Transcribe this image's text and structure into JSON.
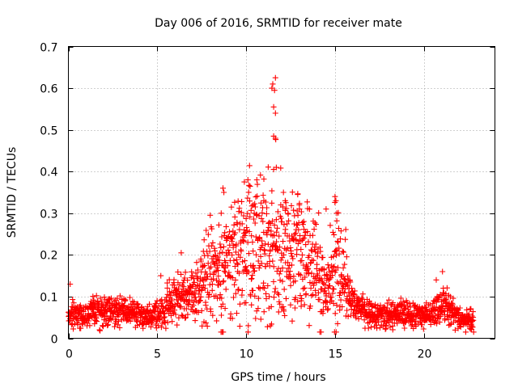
{
  "chart_data": {
    "type": "scatter",
    "title": "Day 006 of 2016, SRMTID for receiver mate",
    "xlabel": "GPS time / hours",
    "ylabel": "SRMTID / TECUs",
    "xlim": [
      0,
      24
    ],
    "ylim": [
      0,
      0.7
    ],
    "x_ticks": [
      0,
      5,
      10,
      15,
      20
    ],
    "x_tick_labels": [
      "0",
      "5",
      "10",
      "15",
      "20"
    ],
    "y_ticks": [
      0,
      0.1,
      0.2,
      0.3,
      0.4,
      0.5,
      0.6,
      0.7
    ],
    "y_tick_labels": [
      "0",
      "0.1",
      "0.2",
      "0.3",
      "0.4",
      "0.5",
      "0.6",
      "0.7"
    ],
    "grid": true,
    "marker": "+",
    "series_color": "#ff0000",
    "envelope": {
      "x": [
        0,
        1,
        2,
        3,
        4,
        4.5,
        5,
        5.5,
        6,
        6.5,
        7,
        7.5,
        8,
        8.5,
        9,
        9.5,
        10,
        10.5,
        11,
        11.5,
        12,
        12.5,
        13,
        13.5,
        14,
        14.5,
        15,
        15.5,
        16,
        16.5,
        17,
        18,
        19,
        20,
        20.5,
        21,
        21.5,
        22,
        22.8
      ],
      "y": [
        0.055,
        0.06,
        0.068,
        0.065,
        0.058,
        0.05,
        0.06,
        0.075,
        0.09,
        0.105,
        0.11,
        0.13,
        0.15,
        0.16,
        0.17,
        0.2,
        0.22,
        0.235,
        0.23,
        0.235,
        0.2,
        0.195,
        0.215,
        0.2,
        0.14,
        0.11,
        0.18,
        0.15,
        0.08,
        0.065,
        0.06,
        0.058,
        0.055,
        0.053,
        0.06,
        0.075,
        0.065,
        0.05,
        0.045
      ]
    },
    "points_generated": 1900,
    "x_range_data": [
      0,
      22.8
    ],
    "peak_points": [
      {
        "x": 11.65,
        "y": 0.625
      },
      {
        "x": 11.5,
        "y": 0.61
      },
      {
        "x": 11.45,
        "y": 0.6
      },
      {
        "x": 11.6,
        "y": 0.595
      },
      {
        "x": 11.55,
        "y": 0.555
      },
      {
        "x": 11.65,
        "y": 0.54
      },
      {
        "x": 11.55,
        "y": 0.485
      },
      {
        "x": 11.65,
        "y": 0.48
      },
      {
        "x": 11.7,
        "y": 0.41
      },
      {
        "x": 11.55,
        "y": 0.405
      },
      {
        "x": 10.1,
        "y": 0.38
      },
      {
        "x": 10.6,
        "y": 0.38
      },
      {
        "x": 9.9,
        "y": 0.375
      },
      {
        "x": 8.7,
        "y": 0.36
      },
      {
        "x": 8.75,
        "y": 0.35
      },
      {
        "x": 12.1,
        "y": 0.35
      },
      {
        "x": 12.9,
        "y": 0.345
      },
      {
        "x": 15.0,
        "y": 0.34
      },
      {
        "x": 15.05,
        "y": 0.33
      },
      {
        "x": 12.2,
        "y": 0.33
      },
      {
        "x": 11.95,
        "y": 0.32
      },
      {
        "x": 15.1,
        "y": 0.3
      },
      {
        "x": 8.6,
        "y": 0.3
      },
      {
        "x": 13.0,
        "y": 0.31
      },
      {
        "x": 14.5,
        "y": 0.31
      },
      {
        "x": 10.4,
        "y": 0.32
      },
      {
        "x": 11.0,
        "y": 0.33
      },
      {
        "x": 6.35,
        "y": 0.205
      },
      {
        "x": 7.45,
        "y": 0.19
      },
      {
        "x": 7.55,
        "y": 0.17
      },
      {
        "x": 21.05,
        "y": 0.16
      },
      {
        "x": 20.7,
        "y": 0.14
      },
      {
        "x": 0.1,
        "y": 0.13
      },
      {
        "x": 5.2,
        "y": 0.15
      },
      {
        "x": 11.3,
        "y": 0.1
      },
      {
        "x": 12.5,
        "y": 0.08
      },
      {
        "x": 10.3,
        "y": 0.08
      },
      {
        "x": 13.1,
        "y": 0.09
      }
    ]
  }
}
